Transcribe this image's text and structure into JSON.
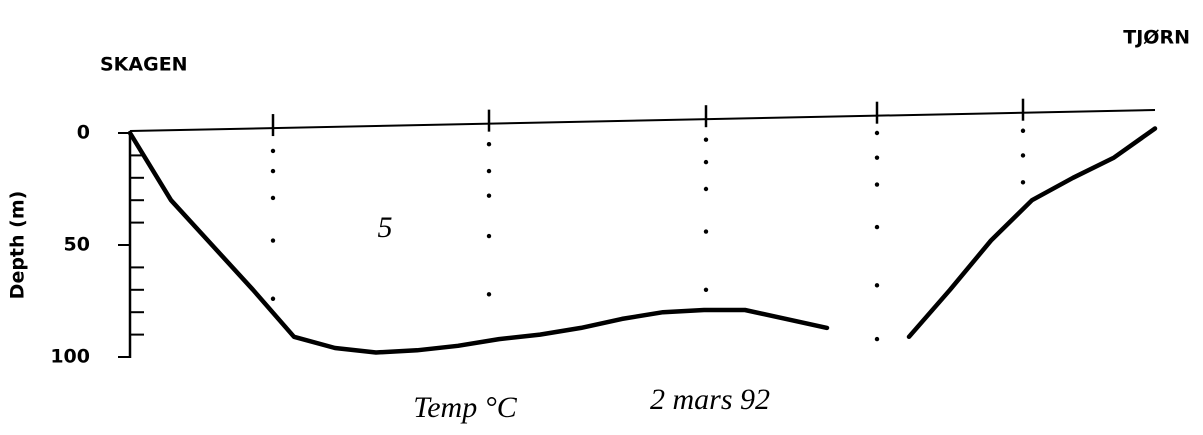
{
  "chart_data": {
    "type": "section",
    "left_label": "SKAGEN",
    "right_label": "TJØRN",
    "y_label": "Depth (m)",
    "annotation": "5",
    "footer_left": "Temp °C",
    "footer_right": "2 mars 92",
    "ylim": [
      0,
      100
    ],
    "yticks": [
      0,
      50,
      100
    ],
    "yminorticks": [
      10,
      20,
      30,
      40,
      60,
      70,
      80,
      90
    ],
    "inverted_y": true,
    "bottom": {
      "categories": [
        null,
        null,
        null,
        null,
        null,
        null,
        null,
        null,
        null,
        null,
        null,
        null,
        null,
        null,
        null,
        null,
        null,
        null,
        null,
        null,
        null,
        null,
        null,
        null,
        null,
        null
      ],
      "values": [
        0,
        30,
        50,
        70,
        91,
        96,
        98,
        97,
        95,
        92,
        90,
        87,
        83,
        80,
        79,
        79,
        83,
        87,
        null,
        91,
        70,
        48,
        30,
        20,
        11,
        -2
      ],
      "color": "#000000"
    },
    "stations": [
      {
        "depths": [
          8,
          17,
          29,
          48,
          74
        ]
      },
      {
        "depths": [
          5,
          17,
          28,
          46,
          72
        ]
      },
      {
        "depths": [
          3,
          13,
          25,
          44,
          70
        ]
      },
      {
        "depths": [
          0,
          11,
          23,
          42,
          68,
          92
        ]
      },
      {
        "depths": [
          -1,
          10,
          22
        ]
      }
    ]
  }
}
